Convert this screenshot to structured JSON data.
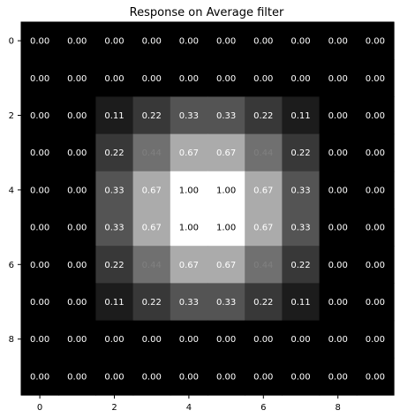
{
  "chart_data": {
    "type": "heatmap",
    "title": "Response on Average filter",
    "colormap": "gray",
    "value_range": [
      0,
      1
    ],
    "x_ticks": [
      0,
      2,
      4,
      6,
      8
    ],
    "y_ticks": [
      0,
      2,
      4,
      6,
      8
    ],
    "values": [
      [
        0,
        0,
        0,
        0,
        0,
        0,
        0,
        0,
        0,
        0
      ],
      [
        0,
        0,
        0,
        0,
        0,
        0,
        0,
        0,
        0,
        0
      ],
      [
        0,
        0,
        0.11,
        0.22,
        0.33,
        0.33,
        0.22,
        0.11,
        0,
        0
      ],
      [
        0,
        0,
        0.22,
        0.44,
        0.67,
        0.67,
        0.44,
        0.22,
        0,
        0
      ],
      [
        0,
        0,
        0.33,
        0.67,
        1.0,
        1.0,
        0.67,
        0.33,
        0,
        0
      ],
      [
        0,
        0,
        0.33,
        0.67,
        1.0,
        1.0,
        0.67,
        0.33,
        0,
        0
      ],
      [
        0,
        0,
        0.22,
        0.44,
        0.67,
        0.67,
        0.44,
        0.22,
        0,
        0
      ],
      [
        0,
        0,
        0.11,
        0.22,
        0.33,
        0.33,
        0.22,
        0.11,
        0,
        0
      ],
      [
        0,
        0,
        0,
        0,
        0,
        0,
        0,
        0,
        0,
        0
      ],
      [
        0,
        0,
        0,
        0,
        0,
        0,
        0,
        0,
        0,
        0
      ]
    ],
    "annotation_format": "0.00",
    "annotation_color_light": "#ffffff",
    "annotation_color_mid": "#808080",
    "annotation_color_dark": "#000000",
    "frame_color": "#000000"
  }
}
